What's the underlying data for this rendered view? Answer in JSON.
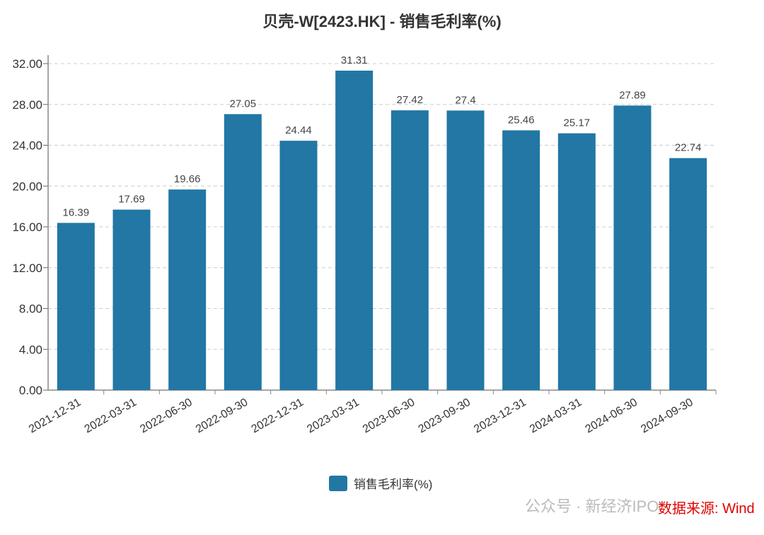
{
  "chart_data": {
    "type": "bar",
    "title": "贝壳-W[2423.HK] - 销售毛利率(%)",
    "categories": [
      "2021-12-31",
      "2022-03-31",
      "2022-06-30",
      "2022-09-30",
      "2022-12-31",
      "2023-03-31",
      "2023-06-30",
      "2023-09-30",
      "2023-12-31",
      "2024-03-31",
      "2024-06-30",
      "2024-09-30"
    ],
    "series": [
      {
        "name": "销售毛利率(%)",
        "values": [
          16.39,
          17.69,
          19.66,
          27.05,
          24.44,
          31.31,
          27.42,
          27.4,
          25.46,
          25.17,
          27.89,
          22.74
        ],
        "labels": [
          "16.39",
          "17.69",
          "19.66",
          "27.05",
          "24.44",
          "31.31",
          "27.42",
          "27.4",
          "25.46",
          "25.17",
          "27.89",
          "22.74"
        ]
      }
    ],
    "yticks": [
      "0.00",
      "4.00",
      "8.00",
      "12.00",
      "16.00",
      "20.00",
      "24.00",
      "28.00",
      "32.00"
    ],
    "ylim": [
      0,
      32
    ],
    "grid": true,
    "legend_position": "bottom",
    "bar_color": "#2277a4"
  },
  "watermark": "公众号 · 新经济IPO",
  "source": "数据来源: Wind"
}
